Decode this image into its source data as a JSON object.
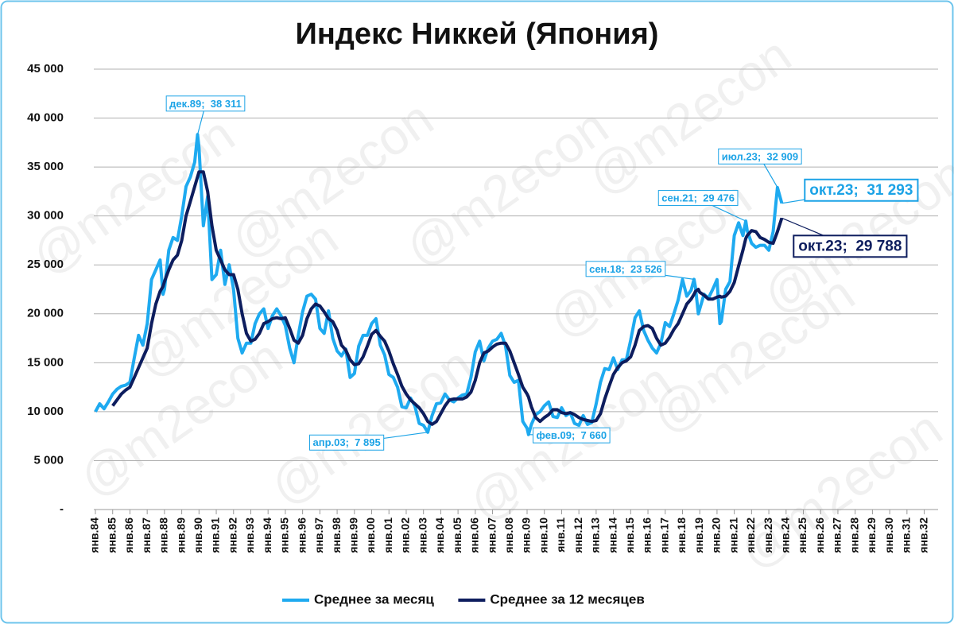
{
  "chart_data": {
    "type": "line",
    "title": "Индекс Никкей (Япония)",
    "watermark": "@m2econ",
    "ylim": [
      0,
      45000
    ],
    "yticks": [
      {
        "value": 0,
        "label": "-"
      },
      {
        "value": 5000,
        "label": "5 000"
      },
      {
        "value": 10000,
        "label": "10 000"
      },
      {
        "value": 15000,
        "label": "15 000"
      },
      {
        "value": 20000,
        "label": "20 000"
      },
      {
        "value": 25000,
        "label": "25 000"
      },
      {
        "value": 30000,
        "label": "30 000"
      },
      {
        "value": 35000,
        "label": "35 000"
      },
      {
        "value": 40000,
        "label": "40 000"
      },
      {
        "value": 45000,
        "label": "45 000"
      }
    ],
    "grid": true,
    "xticks": [
      "янв.84",
      "янв.85",
      "янв.86",
      "янв.87",
      "янв.88",
      "янв.89",
      "янв.90",
      "янв.91",
      "янв.92",
      "янв.93",
      "янв.94",
      "янв.95",
      "янв.96",
      "янв.97",
      "янв.98",
      "янв.99",
      "янв.00",
      "янв.01",
      "янв.02",
      "янв.03",
      "янв.04",
      "янв.05",
      "янв.06",
      "янв.07",
      "янв.08",
      "янв.09",
      "янв.10",
      "янв.11",
      "янв.12",
      "янв.13",
      "янв.14",
      "янв.15",
      "янв.16",
      "янв.17",
      "янв.18",
      "янв.19",
      "янв.20",
      "янв.21",
      "янв.22",
      "янв.23",
      "янв.24",
      "янв.25",
      "янв.26",
      "янв.27",
      "янв.28",
      "янв.29",
      "янв.30",
      "янв.31",
      "янв.32"
    ],
    "legend": "bottom",
    "x": [
      "янв.84",
      "апр.84",
      "июл.84",
      "окт.84",
      "янв.85",
      "апр.85",
      "июл.85",
      "окт.85",
      "янв.86",
      "апр.86",
      "июл.86",
      "окт.86",
      "янв.87",
      "апр.87",
      "июл.87",
      "окт.87",
      "дек.87",
      "янв.88",
      "апр.88",
      "июл.88",
      "окт.88",
      "янв.89",
      "апр.89",
      "июл.89",
      "окт.89",
      "дек.89",
      "янв.90",
      "апр.90",
      "июл.90",
      "окт.90",
      "янв.91",
      "апр.91",
      "июл.91",
      "окт.91",
      "янв.92",
      "апр.92",
      "июл.92",
      "окт.92",
      "янв.93",
      "апр.93",
      "июл.93",
      "окт.93",
      "янв.94",
      "апр.94",
      "июл.94",
      "окт.94",
      "янв.95",
      "апр.95",
      "июл.95",
      "окт.95",
      "янв.96",
      "апр.96",
      "июл.96",
      "окт.96",
      "янв.97",
      "апр.97",
      "июл.97",
      "окт.97",
      "янв.98",
      "апр.98",
      "июл.98",
      "окт.98",
      "янв.99",
      "апр.99",
      "июл.99",
      "окт.99",
      "янв.00",
      "апр.00",
      "июл.00",
      "окт.00",
      "янв.01",
      "апр.01",
      "июл.01",
      "окт.01",
      "янв.02",
      "апр.02",
      "июл.02",
      "окт.02",
      "янв.03",
      "апр.03",
      "июл.03",
      "окт.03",
      "янв.04",
      "апр.04",
      "июл.04",
      "окт.04",
      "янв.05",
      "апр.05",
      "июл.05",
      "окт.05",
      "янв.06",
      "апр.06",
      "июл.06",
      "окт.06",
      "янв.07",
      "апр.07",
      "июл.07",
      "окт.07",
      "янв.08",
      "апр.08",
      "июл.08",
      "окт.08",
      "янв.09",
      "фев.09",
      "апр.09",
      "июл.09",
      "окт.09",
      "янв.10",
      "апр.10",
      "июл.10",
      "окт.10",
      "янв.11",
      "апр.11",
      "июл.11",
      "окт.11",
      "янв.12",
      "апр.12",
      "июл.12",
      "окт.12",
      "янв.13",
      "апр.13",
      "июл.13",
      "окт.13",
      "янв.14",
      "апр.14",
      "июл.14",
      "окт.14",
      "янв.15",
      "апр.15",
      "июл.15",
      "окт.15",
      "янв.16",
      "апр.16",
      "июл.16",
      "окт.16",
      "янв.17",
      "апр.17",
      "июл.17",
      "окт.17",
      "янв.18",
      "апр.18",
      "июл.18",
      "сен.18",
      "окт.18",
      "дек.18",
      "янв.19",
      "апр.19",
      "июл.19",
      "окт.19",
      "янв.20",
      "мар.20",
      "апр.20",
      "июл.20",
      "окт.20",
      "янв.21",
      "апр.21",
      "июл.21",
      "сен.21",
      "окт.21",
      "янв.22",
      "апр.22",
      "июл.22",
      "окт.22",
      "янв.23",
      "апр.23",
      "июл.23",
      "окт.23"
    ],
    "series": [
      {
        "name": "Среднее за месяц",
        "color": "#1eaaf0",
        "values": [
          10000,
          10800,
          10300,
          11000,
          11800,
          12300,
          12600,
          12700,
          13000,
          15500,
          17800,
          16800,
          19000,
          23500,
          24500,
          25500,
          22000,
          22500,
          26500,
          27800,
          27500,
          30000,
          33000,
          34000,
          35500,
          38311,
          37000,
          29000,
          32000,
          23500,
          24000,
          26500,
          23000,
          25000,
          22500,
          17500,
          16000,
          17000,
          17000,
          19000,
          20000,
          20500,
          18500,
          19800,
          20500,
          19800,
          18800,
          16500,
          15000,
          17800,
          20200,
          21800,
          22000,
          21500,
          18500,
          18000,
          20300,
          17500,
          16200,
          15700,
          16400,
          13500,
          13900,
          16700,
          17800,
          17800,
          19000,
          19500,
          16800,
          15800,
          13800,
          13500,
          12500,
          10500,
          10400,
          11400,
          10600,
          8800,
          8600,
          7895,
          9600,
          10800,
          10900,
          11800,
          11200,
          11000,
          11400,
          11700,
          11800,
          13500,
          16100,
          17200,
          15200,
          16500,
          17200,
          17400,
          18000,
          16700,
          13700,
          13000,
          13200,
          9000,
          8300,
          7660,
          8700,
          9700,
          10000,
          10600,
          11000,
          9500,
          9400,
          10400,
          9600,
          9900,
          8800,
          8600,
          9600,
          8700,
          8900,
          10800,
          13000,
          14400,
          14300,
          15500,
          14300,
          15300,
          15300,
          17300,
          19600,
          20300,
          18300,
          17300,
          16500,
          16000,
          17000,
          19100,
          18700,
          20000,
          21400,
          23500,
          21800,
          22400,
          23526,
          22700,
          20000,
          20500,
          22000,
          21600,
          22500,
          23500,
          19000,
          19200,
          22500,
          23300,
          28000,
          29300,
          28000,
          29476,
          28500,
          27200,
          26800,
          27000,
          27000,
          26500,
          28400,
          32909,
          31293
        ],
        "value_labels": [
          null,
          null,
          null,
          null,
          null,
          null,
          null,
          null,
          null,
          null,
          null,
          null,
          null,
          null,
          null,
          null,
          null,
          null,
          null,
          null,
          null,
          null,
          null,
          null,
          null,
          "дек.89;  38 311",
          null,
          null,
          null,
          null,
          null,
          null,
          null,
          null,
          null,
          null,
          null,
          null,
          null,
          null,
          null,
          null,
          null,
          null,
          null,
          null,
          null,
          null,
          null,
          null,
          null,
          null,
          null,
          null,
          null,
          null,
          null,
          null,
          null,
          null,
          null,
          null,
          null,
          null,
          null,
          null,
          null,
          null,
          null,
          null,
          null,
          null,
          null,
          null,
          null,
          null,
          null,
          null,
          null,
          "апр.03;  7 895",
          null,
          null,
          null,
          null,
          null,
          null,
          null,
          null,
          null,
          null,
          null,
          null,
          null,
          null,
          null,
          null,
          null,
          null,
          null,
          null,
          null,
          null,
          null,
          "фев.09;  7 660",
          null,
          null,
          null,
          null,
          null,
          null,
          null,
          null,
          null,
          null,
          null,
          null,
          null,
          null,
          null,
          null,
          null,
          null,
          null,
          null,
          null,
          null,
          null,
          null,
          null,
          null,
          null,
          null,
          null,
          null,
          null,
          null,
          null,
          null,
          null,
          null,
          null,
          null,
          "сен.18;  23 526",
          null,
          null,
          null,
          null,
          null,
          null,
          null,
          null,
          null,
          null,
          null,
          null,
          null,
          null,
          "сен.21;  29 476",
          null,
          null,
          null,
          null,
          null,
          null,
          null,
          "июл.23;  32 909",
          "окт.23;  31 293"
        ]
      },
      {
        "name": "Среднее за 12 месяцев",
        "color": "#0d1d5e",
        "values": [
          null,
          null,
          null,
          null,
          10600,
          11200,
          11800,
          12200,
          12500,
          13500,
          14500,
          15500,
          16500,
          19000,
          21000,
          22300,
          22800,
          23300,
          24500,
          25500,
          26000,
          27500,
          30000,
          31500,
          33000,
          34000,
          34500,
          34500,
          32500,
          29000,
          26500,
          25500,
          24500,
          24000,
          24000,
          22500,
          20000,
          18000,
          17200,
          17400,
          18000,
          19000,
          19200,
          19500,
          19600,
          19500,
          19600,
          18500,
          17300,
          17000,
          17800,
          19500,
          20500,
          21000,
          20800,
          20200,
          19500,
          19200,
          18300,
          16800,
          16300,
          15300,
          14800,
          14900,
          15600,
          16700,
          17900,
          18300,
          17700,
          17200,
          16200,
          14900,
          13800,
          12600,
          11800,
          11200,
          10800,
          10400,
          9800,
          9000,
          8700,
          9000,
          9800,
          10600,
          11200,
          11300,
          11300,
          11300,
          11500,
          12000,
          13200,
          15000,
          16000,
          16200,
          16600,
          16900,
          17000,
          17000,
          16200,
          15000,
          13800,
          12500,
          11800,
          11500,
          10500,
          9400,
          9000,
          9400,
          9700,
          10200,
          10200,
          9900,
          9800,
          9900,
          9700,
          9400,
          9200,
          9100,
          9000,
          9100,
          9800,
          11300,
          12600,
          13800,
          14500,
          15000,
          15200,
          15600,
          16800,
          18300,
          18700,
          18800,
          18500,
          17500,
          16800,
          17000,
          17600,
          18400,
          19000,
          20000,
          21000,
          21500,
          22000,
          22300,
          22500,
          22200,
          21900,
          21500,
          21500,
          21700,
          21800,
          21700,
          21800,
          22300,
          23200,
          24900,
          26500,
          27700,
          28000,
          28500,
          28400,
          27800,
          27600,
          27300,
          27200,
          28400,
          29788
        ],
        "value_labels": [
          null,
          null,
          null,
          null,
          null,
          null,
          null,
          null,
          null,
          null,
          null,
          null,
          null,
          null,
          null,
          null,
          null,
          null,
          null,
          null,
          null,
          null,
          null,
          null,
          null,
          null,
          null,
          null,
          null,
          null,
          null,
          null,
          null,
          null,
          null,
          null,
          null,
          null,
          null,
          null,
          null,
          null,
          null,
          null,
          null,
          null,
          null,
          null,
          null,
          null,
          null,
          null,
          null,
          null,
          null,
          null,
          null,
          null,
          null,
          null,
          null,
          null,
          null,
          null,
          null,
          null,
          null,
          null,
          null,
          null,
          null,
          null,
          null,
          null,
          null,
          null,
          null,
          null,
          null,
          null,
          null,
          null,
          null,
          null,
          null,
          null,
          null,
          null,
          null,
          null,
          null,
          null,
          null,
          null,
          null,
          null,
          null,
          null,
          null,
          null,
          null,
          null,
          null,
          null,
          null,
          null,
          null,
          null,
          null,
          null,
          null,
          null,
          null,
          null,
          null,
          null,
          null,
          null,
          null,
          null,
          null,
          null,
          null,
          null,
          null,
          null,
          null,
          null,
          null,
          null,
          null,
          null,
          null,
          null,
          null,
          null,
          null,
          null,
          null,
          null,
          null,
          null,
          null,
          null,
          null,
          null,
          null,
          null,
          null,
          null,
          null,
          null,
          null,
          null,
          null,
          null,
          null,
          null,
          null,
          null,
          null,
          null,
          null,
          null,
          null,
          null,
          "окт.23;  29 788"
        ]
      }
    ]
  }
}
